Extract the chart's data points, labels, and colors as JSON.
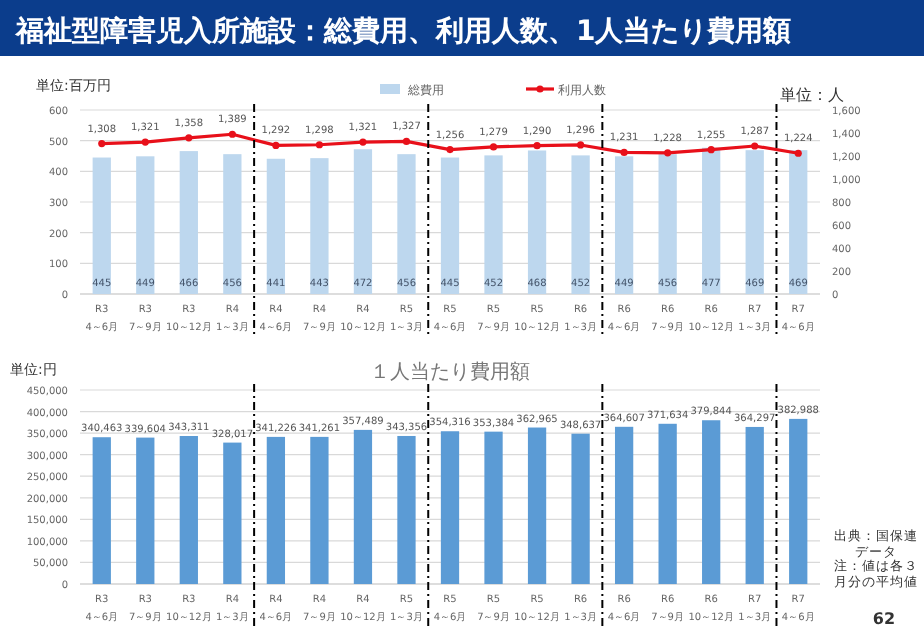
{
  "chart_data": [
    {
      "type": "bar",
      "title": "福祉型障害児入所施設：総費用、利用人数、1人当たり費用額",
      "ylabel": "単位:百万円",
      "y2label": "単位：人",
      "categories": [
        "R3 4～6月",
        "R3 7～9月",
        "R3 10～12月",
        "R4 1～3月",
        "R4 4～6月",
        "R4 7～9月",
        "R4 10～12月",
        "R5 1～3月",
        "R5 4～6月",
        "R5 7～9月",
        "R5 10～12月",
        "R6 1～3月",
        "R6 4～6月",
        "R6 7～9月",
        "R6 10～12月",
        "R7 1～3月",
        "R7 4～6月"
      ],
      "series": [
        {
          "name": "総費用",
          "type": "bar",
          "color": "#bdd7ee",
          "values": [
            445,
            449,
            466,
            456,
            441,
            443,
            472,
            456,
            445,
            452,
            468,
            452,
            449,
            456,
            477,
            469,
            469
          ],
          "value_labels": [
            "445",
            "449",
            "466",
            "456",
            "441",
            "443",
            "472",
            "456",
            "445",
            "452",
            "468",
            "452",
            "449",
            "456",
            "477",
            "469",
            "469"
          ]
        },
        {
          "name": "利用人数",
          "type": "line",
          "axis": "y2",
          "color": "#e8101a",
          "marker": "circle",
          "values": [
            1308,
            1321,
            1358,
            1389,
            1292,
            1298,
            1321,
            1327,
            1256,
            1279,
            1290,
            1296,
            1231,
            1228,
            1255,
            1287,
            1224
          ],
          "value_labels": [
            "1,308",
            "1,321",
            "1,358",
            "1,389",
            "1,292",
            "1,298",
            "1,321",
            "1,327",
            "1,256",
            "1,279",
            "1,290",
            "1,296",
            "1,231",
            "1,228",
            "1,255",
            "1,287",
            "1,224"
          ]
        }
      ],
      "ylim": [
        0,
        600
      ],
      "yticks": [
        0,
        100,
        200,
        300,
        400,
        500,
        600
      ],
      "y2lim": [
        0,
        1600
      ],
      "y2ticks": [
        0,
        {
          "value": 200,
          "label": "200"
        },
        {
          "value": 400,
          "label": "400"
        },
        {
          "value": 600,
          "label": "600"
        },
        {
          "value": 800,
          "label": "800"
        },
        {
          "value": 1000,
          "label": "1,000"
        },
        {
          "value": 1200,
          "label": "1,200"
        },
        {
          "value": 1400,
          "label": "1,400"
        },
        {
          "value": 1600,
          "label": "1,600"
        }
      ],
      "grid": "y",
      "legend": "top"
    },
    {
      "type": "bar",
      "title": "１人当たり費用額",
      "ylabel": "単位:円",
      "categories": [
        "R3 4～6月",
        "R3 7～9月",
        "R3 10～12月",
        "R4 1～3月",
        "R4 4～6月",
        "R4 7～9月",
        "R4 10～12月",
        "R5 1～3月",
        "R5 4～6月",
        "R5 7～9月",
        "R5 10～12月",
        "R6 1～3月",
        "R6 4～6月",
        "R6 7～9月",
        "R6 10～12月",
        "R7 1～3月",
        "R7 4～6月"
      ],
      "series": [
        {
          "color": "#5b9bd5",
          "values": [
            340463,
            339604,
            343311,
            328017,
            341226,
            341261,
            357489,
            343356,
            354316,
            353384,
            362965,
            348637,
            364607,
            371634,
            379844,
            364297,
            382988
          ],
          "value_labels": [
            "340,463",
            "339,604",
            "343,311",
            "328,017",
            "341,226",
            "341,261",
            "357,489",
            "343,356",
            "354,316",
            "353,384",
            "362,965",
            "348,637",
            "364,607",
            "371,634",
            "379,844",
            "364,297",
            "382,988"
          ]
        }
      ],
      "ylim": [
        0,
        450000
      ],
      "yticks": [
        {
          "value": 0,
          "label": "0"
        },
        {
          "value": 50000,
          "label": "50,000"
        },
        {
          "value": 100000,
          "label": "100,000"
        },
        {
          "value": 150000,
          "label": "150,000"
        },
        {
          "value": 200000,
          "label": "200,000"
        },
        {
          "value": 250000,
          "label": "250,000"
        },
        {
          "value": 300000,
          "label": "300,000"
        },
        {
          "value": 350000,
          "label": "350,000"
        },
        {
          "value": 400000,
          "label": "400,000"
        },
        {
          "value": 450000,
          "label": "450,000"
        }
      ],
      "grid": "y",
      "legend": false,
      "annotations": [
        "出典：国保連データ",
        "注：値は各３月分の平均値",
        "62"
      ]
    }
  ]
}
